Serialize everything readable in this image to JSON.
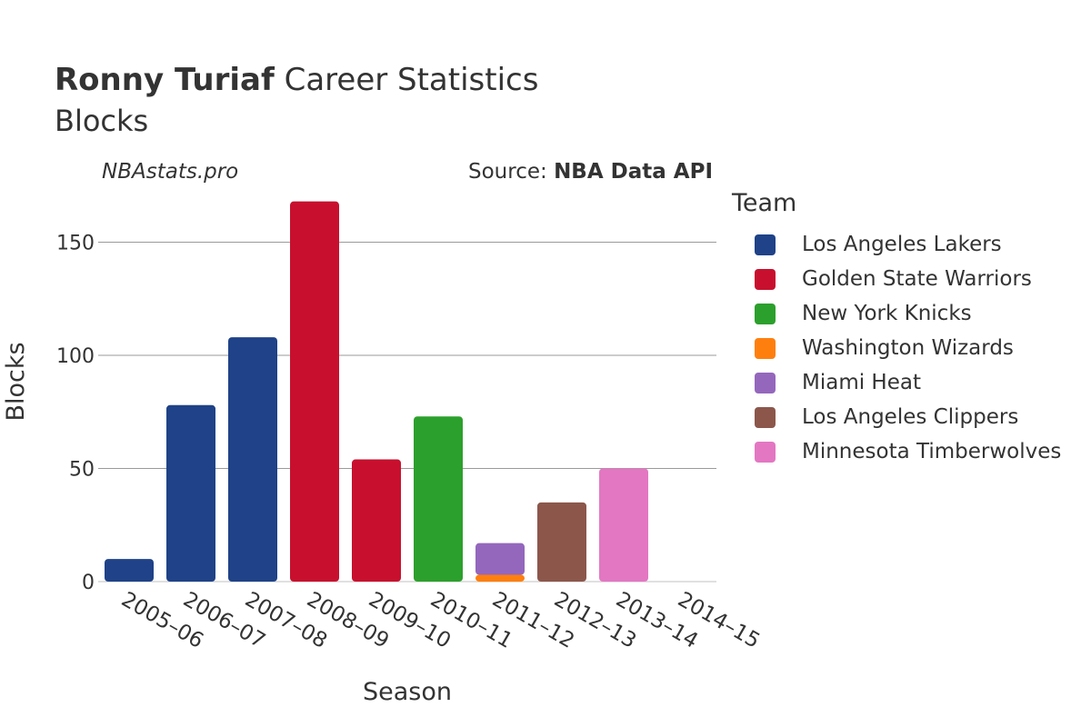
{
  "header": {
    "player": "Ronny Turiaf",
    "title_rest": " Career Statistics",
    "subtitle": "Blocks",
    "brand": "NBAstats.pro",
    "source_prefix": "Source: ",
    "source_name": "NBA Data API"
  },
  "legend": {
    "title": "Team",
    "items": [
      {
        "label": "Los Angeles Lakers",
        "color": "#1f4288"
      },
      {
        "label": "Golden State Warriors",
        "color": "#c8102e"
      },
      {
        "label": "New York Knicks",
        "color": "#2ca02c"
      },
      {
        "label": "Washington Wizards",
        "color": "#ff7f0e"
      },
      {
        "label": "Miami Heat",
        "color": "#9467bd"
      },
      {
        "label": "Los Angeles Clippers",
        "color": "#8c564b"
      },
      {
        "label": "Minnesota Timberwolves",
        "color": "#e377c2"
      }
    ]
  },
  "chart_data": {
    "type": "bar",
    "stacked": true,
    "xlabel": "Season",
    "ylabel": "Blocks",
    "ylim": [
      0,
      170
    ],
    "yticks": [
      0,
      50,
      100,
      150
    ],
    "grid": true,
    "legend_position": "right",
    "categories": [
      "2005–06",
      "2006–07",
      "2007–08",
      "2008–09",
      "2009–10",
      "2010–11",
      "2011–12",
      "2012–13",
      "2013–14",
      "2014–15"
    ],
    "series": [
      {
        "name": "Los Angeles Lakers",
        "color": "#1f4288",
        "values": [
          10,
          78,
          108,
          0,
          0,
          0,
          0,
          0,
          0,
          0
        ]
      },
      {
        "name": "Golden State Warriors",
        "color": "#c8102e",
        "values": [
          0,
          0,
          0,
          168,
          54,
          0,
          0,
          0,
          0,
          0
        ]
      },
      {
        "name": "New York Knicks",
        "color": "#2ca02c",
        "values": [
          0,
          0,
          0,
          0,
          0,
          73,
          0,
          0,
          0,
          0
        ]
      },
      {
        "name": "Washington Wizards",
        "color": "#ff7f0e",
        "values": [
          0,
          0,
          0,
          0,
          0,
          0,
          3,
          0,
          0,
          0
        ]
      },
      {
        "name": "Miami Heat",
        "color": "#9467bd",
        "values": [
          0,
          0,
          0,
          0,
          0,
          0,
          14,
          0,
          0,
          0
        ]
      },
      {
        "name": "Los Angeles Clippers",
        "color": "#8c564b",
        "values": [
          0,
          0,
          0,
          0,
          0,
          0,
          0,
          35,
          0,
          0
        ]
      },
      {
        "name": "Minnesota Timberwolves",
        "color": "#e377c2",
        "values": [
          0,
          0,
          0,
          0,
          0,
          0,
          0,
          0,
          50,
          0
        ]
      }
    ]
  }
}
